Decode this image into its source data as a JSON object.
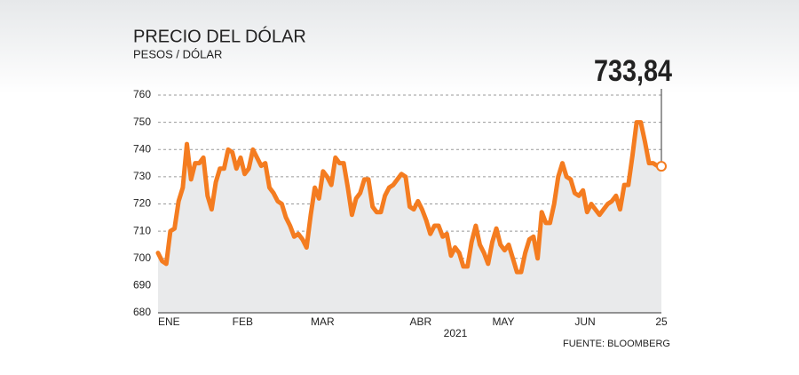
{
  "chart_data": {
    "type": "line",
    "title": "PRECIO DEL DÓLAR",
    "subtitle": "PESOS / DÓLAR",
    "x_label": "2021",
    "source": "FUENTE: BLOOMBERG",
    "color": "#f47c20",
    "area_color": "#e9eaeb",
    "grid": true,
    "ylim": [
      680,
      760
    ],
    "yticks": [
      680,
      690,
      700,
      710,
      720,
      730,
      740,
      750,
      760
    ],
    "categories": [
      "ENE",
      null,
      null,
      null,
      null,
      null,
      null,
      null,
      null,
      null,
      null,
      null,
      null,
      null,
      null,
      null,
      null,
      null,
      "FEB",
      null,
      null,
      null,
      null,
      null,
      null,
      null,
      null,
      null,
      null,
      null,
      null,
      null,
      null,
      null,
      null,
      null,
      null,
      "MAR",
      null,
      null,
      null,
      null,
      null,
      null,
      null,
      null,
      null,
      null,
      null,
      null,
      null,
      null,
      null,
      null,
      null,
      null,
      null,
      null,
      null,
      null,
      null,
      "ABR",
      null,
      null,
      null,
      null,
      null,
      null,
      null,
      null,
      null,
      null,
      null,
      null,
      null,
      null,
      null,
      null,
      null,
      null,
      null,
      "MAY",
      null,
      null,
      null,
      null,
      null,
      null,
      null,
      null,
      null,
      null,
      null,
      null,
      null,
      null,
      null,
      null,
      null,
      null,
      null,
      "JUN",
      null,
      null,
      null,
      null,
      null,
      null,
      null,
      null,
      null,
      null,
      null,
      null,
      null,
      null,
      null,
      null,
      null,
      null,
      null,
      null,
      "25"
    ],
    "values": [
      702,
      699,
      698,
      710,
      711,
      721,
      726,
      742,
      729,
      735,
      735,
      737,
      723,
      718,
      728,
      733,
      733,
      740,
      739,
      733,
      737,
      731,
      733,
      740,
      737,
      734,
      735,
      726,
      724,
      721,
      720,
      715,
      712,
      708,
      709,
      707,
      704,
      716,
      726,
      722,
      732,
      730,
      727,
      737,
      735,
      735,
      726,
      716,
      722,
      724,
      729,
      729,
      719,
      717,
      717,
      723,
      726,
      727,
      729,
      731,
      730,
      719,
      718,
      721,
      718,
      714,
      709,
      712,
      712,
      708,
      709,
      701,
      704,
      702,
      697,
      697,
      706,
      712,
      705,
      702,
      698,
      706,
      711,
      705,
      703,
      705,
      700,
      695,
      695,
      702,
      707,
      708,
      700,
      717,
      713,
      713,
      720,
      730,
      735,
      730,
      729,
      724,
      723,
      725,
      717,
      720,
      718,
      716,
      718,
      720,
      721,
      723,
      718,
      727,
      727,
      738,
      750,
      750,
      743,
      735,
      735,
      734,
      733.84
    ],
    "value_labels": [
      null,
      null,
      null,
      null,
      null,
      null,
      null,
      null,
      null,
      null,
      null,
      null,
      null,
      null,
      null,
      null,
      null,
      null,
      null,
      null,
      null,
      null,
      null,
      null,
      null,
      null,
      null,
      null,
      null,
      null,
      null,
      null,
      null,
      null,
      null,
      null,
      null,
      null,
      null,
      null,
      null,
      null,
      null,
      null,
      null,
      null,
      null,
      null,
      null,
      null,
      null,
      null,
      null,
      null,
      null,
      null,
      null,
      null,
      null,
      null,
      null,
      null,
      null,
      null,
      null,
      null,
      null,
      null,
      null,
      null,
      null,
      null,
      null,
      null,
      null,
      null,
      null,
      null,
      null,
      null,
      null,
      null,
      null,
      null,
      null,
      null,
      null,
      null,
      null,
      null,
      null,
      null,
      null,
      null,
      null,
      null,
      null,
      null,
      null,
      null,
      null,
      null,
      null,
      null,
      null,
      null,
      null,
      null,
      null,
      null,
      null,
      null,
      null,
      null,
      null,
      null,
      null,
      null,
      null,
      null,
      null,
      null,
      "733,84"
    ]
  }
}
